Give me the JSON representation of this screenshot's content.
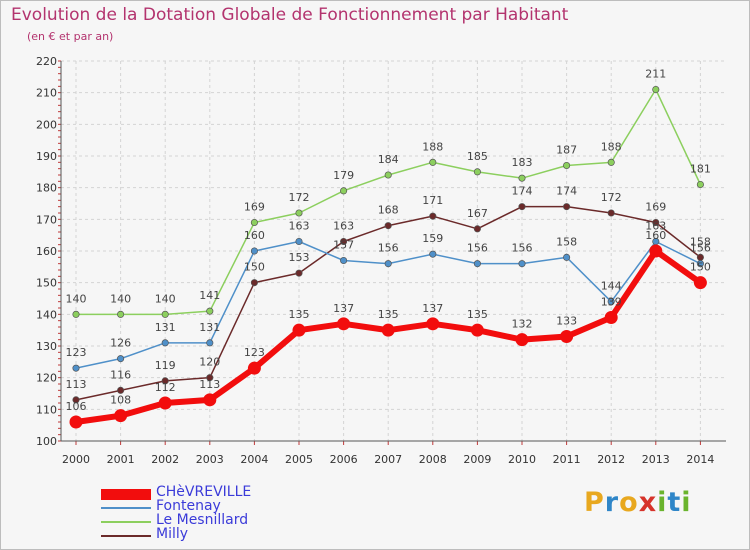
{
  "title": "Evolution de la Dotation Globale de Fonctionnement par Habitant",
  "subtitle": "(en € et par an)",
  "brand": {
    "letters": [
      "P",
      "r",
      "o",
      "x",
      "i",
      "t",
      "i"
    ],
    "colors": [
      "#e8a81f",
      "#2f86c8",
      "#e8a81f",
      "#d6332a",
      "#6ab42d",
      "#2f86c8",
      "#6ab42d"
    ]
  },
  "chart_data": {
    "type": "line",
    "x": [
      "2000",
      "2001",
      "2002",
      "2003",
      "2004",
      "2005",
      "2006",
      "2007",
      "2008",
      "2009",
      "2010",
      "2011",
      "2012",
      "2013",
      "2014"
    ],
    "ylim": [
      100,
      220
    ],
    "yticks": [
      100,
      110,
      120,
      130,
      140,
      150,
      160,
      170,
      180,
      190,
      200,
      210,
      220
    ],
    "grid": true,
    "legend_position": "bottom-left",
    "series": [
      {
        "name": "Le Mesnillard",
        "color": "#8ccf5e",
        "values": [
          140,
          140,
          140,
          141,
          169,
          172,
          179,
          184,
          188,
          185,
          183,
          187,
          188,
          211,
          181
        ]
      },
      {
        "name": "Milly",
        "color": "#6b2a2a",
        "values": [
          113,
          116,
          119,
          120,
          150,
          153,
          163,
          168,
          171,
          167,
          174,
          174,
          172,
          169,
          158
        ]
      },
      {
        "name": "Fontenay",
        "color": "#4f90c9",
        "values": [
          123,
          126,
          131,
          131,
          160,
          163,
          157,
          156,
          159,
          156,
          156,
          158,
          144,
          163,
          156
        ]
      },
      {
        "name": "CHèVREVILLE",
        "color": "#f20d0d",
        "values": [
          106,
          108,
          112,
          113,
          123,
          135,
          137,
          135,
          137,
          135,
          132,
          133,
          139,
          160,
          150
        ]
      }
    ],
    "data_labels": {
      "Le Mesnillard": [
        "140",
        "140",
        "140",
        "141",
        "169",
        "172",
        "179",
        "184",
        "188",
        "185",
        "183",
        "187",
        "188",
        "211",
        "181"
      ],
      "Milly": [
        "113",
        "116",
        "119",
        "120",
        "150",
        "153",
        "163",
        "168",
        "171",
        "167",
        "174",
        "174",
        "172",
        "169",
        "158"
      ],
      "Fontenay": [
        "123",
        "126",
        "131",
        "131",
        "160",
        "163",
        "157",
        "156",
        "159",
        "156",
        "156",
        "158",
        "144",
        "163",
        "156"
      ],
      "CHèVREVILLE": [
        "106",
        "108",
        "112",
        "113",
        "123",
        "135",
        "137",
        "135",
        "137",
        "135",
        "132",
        "133",
        "139",
        "160",
        "150"
      ]
    },
    "legend": [
      "CHèVREVILLE",
      "Fontenay",
      "Le Mesnillard",
      "Milly"
    ]
  }
}
